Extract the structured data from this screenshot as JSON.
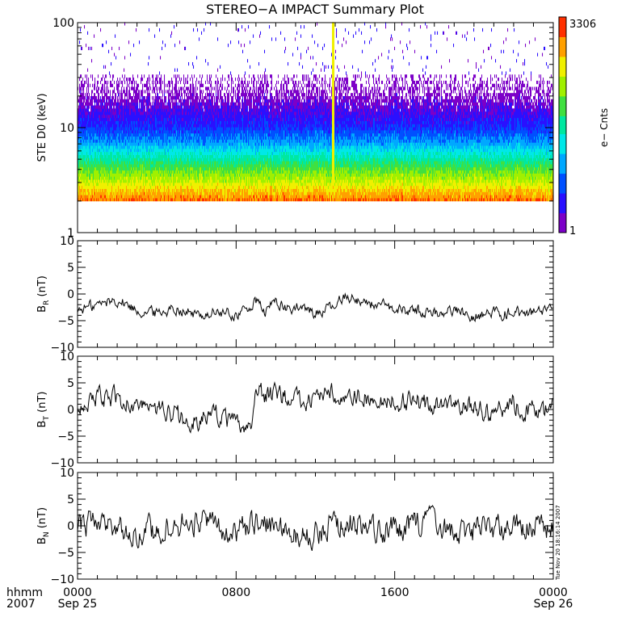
{
  "title": "STEREO−A IMPACT Summary Plot",
  "timestamp": "Tue Nov 20 18:16:14 2007",
  "x_axis": {
    "prefix_line1": "hhmm",
    "prefix_line2": "2007",
    "ticks": [
      {
        "t": 0,
        "line1": "0000",
        "line2": "Sep 25"
      },
      {
        "t": 8,
        "line1": "0800",
        "line2": ""
      },
      {
        "t": 16,
        "line1": "1600",
        "line2": ""
      },
      {
        "t": 24,
        "line1": "0000",
        "line2": "Sep 26"
      }
    ]
  },
  "colorbar": {
    "label": "e− Cnts",
    "max_label": "3306",
    "min_label": "1",
    "max": 3306,
    "min": 1,
    "scale": "log",
    "colors": [
      "#7c00c8",
      "#2a10ff",
      "#0050ff",
      "#00a8ff",
      "#00e8e8",
      "#00e8a0",
      "#40e040",
      "#a0f000",
      "#f0f000",
      "#ffa000",
      "#ff3000"
    ]
  },
  "chart_data": [
    {
      "type": "heatmap",
      "ylabel": "STE D0 (keV)",
      "yscale": "log",
      "ylim": [
        1,
        100
      ],
      "y_ticks": [
        "100",
        "10",
        "1"
      ],
      "y_tick_values": [
        100,
        10,
        1
      ],
      "xlim": [
        0,
        24
      ],
      "energy_min": 2,
      "profile": [
        {
          "e": 2,
          "counts": 1500
        },
        {
          "e": 2.5,
          "counts": 700
        },
        {
          "e": 3,
          "counts": 350
        },
        {
          "e": 4,
          "counts": 130
        },
        {
          "e": 5,
          "counts": 50
        },
        {
          "e": 7,
          "counts": 12
        },
        {
          "e": 10,
          "counts": 4
        },
        {
          "e": 15,
          "counts": 2
        },
        {
          "e": 20,
          "counts": 1.3
        },
        {
          "e": 30,
          "counts": 1
        }
      ],
      "spike_time": 12.9
    },
    {
      "type": "line",
      "ylabel": "B_R (nT)",
      "ylabel_main": "B",
      "ylabel_sub": "R",
      "ylabel_unit": " (nT)",
      "ylim": [
        -10,
        10
      ],
      "y_ticks": [
        "10",
        "5",
        "0",
        "−5",
        "−10"
      ],
      "y_tick_values": [
        10,
        5,
        0,
        -5,
        -10
      ],
      "xlim": [
        0,
        24
      ],
      "series": [
        {
          "x": [
            0,
            1,
            2,
            3,
            4,
            5,
            6,
            7,
            8,
            8.5,
            9,
            9.5,
            10,
            10.5,
            11,
            12,
            13,
            13.5,
            14,
            15,
            16,
            17,
            18,
            19,
            20,
            21,
            22,
            23,
            24
          ],
          "y": [
            -3,
            -2,
            -1,
            -3,
            -3.5,
            -2.5,
            -4,
            -3.5,
            -4,
            -3,
            -1.5,
            -3.5,
            -1,
            -3,
            -2.5,
            -3.5,
            -2.5,
            0,
            -1,
            -2,
            -3,
            -3,
            -3.5,
            -3,
            -4,
            -3.5,
            -3.5,
            -3.5,
            -3.5
          ],
          "noise": 1.3
        }
      ]
    },
    {
      "type": "line",
      "ylabel": "B_T (nT)",
      "ylabel_main": "B",
      "ylabel_sub": "T",
      "ylabel_unit": " (nT)",
      "ylim": [
        -10,
        10
      ],
      "y_ticks": [
        "10",
        "5",
        "0",
        "−5",
        "−10"
      ],
      "y_tick_values": [
        10,
        5,
        0,
        -5,
        -10
      ],
      "xlim": [
        0,
        24
      ],
      "series": [
        {
          "x": [
            0,
            1,
            2,
            3,
            4,
            5,
            6,
            7,
            8,
            8.8,
            9,
            10,
            11,
            12,
            13,
            14,
            15,
            16,
            17,
            18,
            19,
            20,
            21,
            22,
            22.5,
            23,
            24
          ],
          "y": [
            1,
            2,
            2,
            1,
            0,
            -1.5,
            -2,
            -1,
            -3,
            -3,
            3,
            2.5,
            2,
            2,
            3,
            3,
            2,
            1.5,
            1.5,
            0.5,
            2,
            0,
            -1,
            1.5,
            -0.5,
            -0.5,
            0
          ],
          "noise": 2.2
        }
      ]
    },
    {
      "type": "line",
      "ylabel": "B_N (nT)",
      "ylabel_main": "B",
      "ylabel_sub": "N",
      "ylabel_unit": " (nT)",
      "ylim": [
        -10,
        10
      ],
      "y_ticks": [
        "10",
        "5",
        "0",
        "−5",
        "−10"
      ],
      "y_tick_values": [
        10,
        5,
        0,
        -5,
        -10
      ],
      "xlim": [
        0,
        24
      ],
      "series": [
        {
          "x": [
            0,
            1,
            2,
            3,
            4,
            5,
            6,
            7,
            8,
            9,
            10,
            11,
            12,
            13,
            14,
            15,
            16,
            17,
            18,
            19,
            20,
            21,
            22,
            23,
            24
          ],
          "y": [
            0,
            1,
            0,
            -1.5,
            -1,
            0,
            1,
            0,
            -1,
            0,
            0,
            -2,
            -1,
            0,
            1,
            -1,
            -0.5,
            0,
            0.5,
            -0.5,
            -1,
            -0.5,
            0,
            -0.5,
            -0.5
          ],
          "noise": 2.8
        }
      ]
    }
  ]
}
